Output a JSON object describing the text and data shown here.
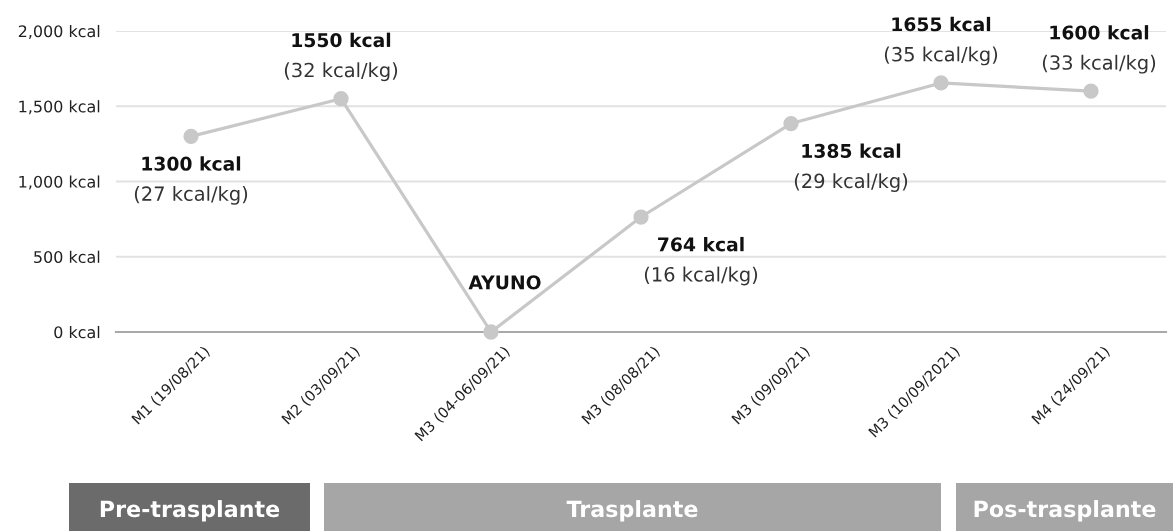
{
  "chart_data": {
    "type": "line",
    "categories": [
      "M1 (19/08/21)",
      "M2 (03/09/21)",
      "M3 (04-06/09/21)",
      "M3 (08/08/21)",
      "M3 (09/09/21)",
      "M3 (10/09/2021)",
      "M4 (24/09/21)"
    ],
    "values": [
      1300,
      1550,
      0,
      764,
      1385,
      1655,
      1600
    ],
    "color": "#c8c8c8",
    "marker": "circle",
    "line_style": "solid",
    "value_labels": [
      "1300 kcal\n(27 kcal/kg)",
      "1550 kcal\n(32 kcal/kg)",
      "AYUNO",
      "764 kcal\n(16 kcal/kg)",
      "1385 kcal\n(29 kcal/kg)",
      "1655 kcal\n(35 kcal/kg)",
      "1600 kcal\n(33 kcal/kg)"
    ],
    "ylim": [
      0,
      2000
    ],
    "yticks": [
      {
        "value": 0,
        "label": "0 kcal"
      },
      {
        "value": 500,
        "label": "500 kcal"
      },
      {
        "value": 1000,
        "label": "1,000 kcal"
      },
      {
        "value": 1500,
        "label": "1,500 kcal"
      },
      {
        "value": 2000,
        "label": "2,000 kcal"
      }
    ],
    "grid": "y",
    "annotations": [
      "Pre-trasplante",
      "Trasplante",
      "Pos-trasplante"
    ]
  }
}
